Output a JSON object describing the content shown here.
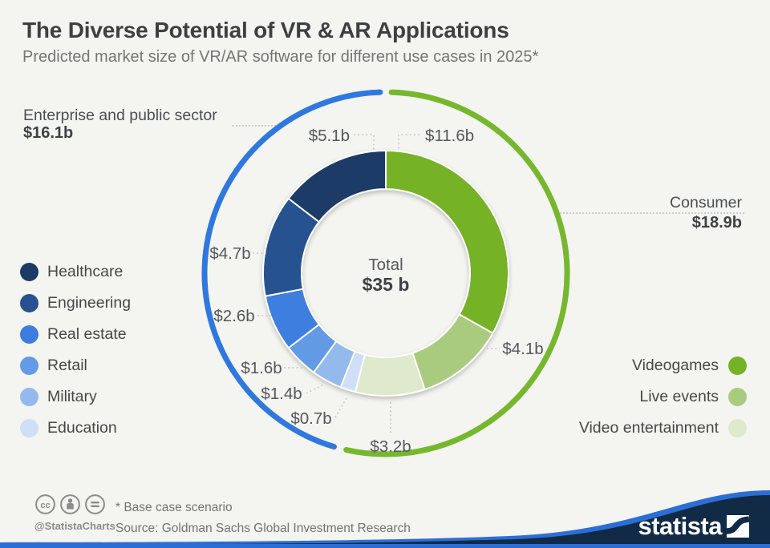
{
  "header": {
    "title": "The Diverse Potential of VR & AR Applications",
    "subtitle": "Predicted market size of VR/AR software for different use cases in 2025*"
  },
  "chart_data": {
    "type": "donut",
    "title": "The Diverse Potential of VR & AR Applications",
    "center_label": "Total",
    "center_value": "$35 b",
    "total": 35,
    "groups": [
      {
        "name": "Consumer",
        "value": 18.9,
        "value_label": "$18.9b",
        "color": "#76b82d"
      },
      {
        "name": "Enterprise and public sector",
        "value": 16.1,
        "value_label": "$16.1b",
        "color": "#2e78df"
      }
    ],
    "segments": [
      {
        "name": "Videogames",
        "value": 11.6,
        "label": "$11.6b",
        "color": "#74b226",
        "group": "Consumer"
      },
      {
        "name": "Live events",
        "value": 4.1,
        "label": "$4.1b",
        "color": "#a9cb7e",
        "group": "Consumer"
      },
      {
        "name": "Video entertainment",
        "value": 3.2,
        "label": "$3.2b",
        "color": "#dfe9cb",
        "group": "Consumer"
      },
      {
        "name": "Education",
        "value": 0.7,
        "label": "$0.7b",
        "color": "#cfdff7",
        "group": "Enterprise and public sector"
      },
      {
        "name": "Military",
        "value": 1.4,
        "label": "$1.4b",
        "color": "#93b9ed",
        "group": "Enterprise and public sector"
      },
      {
        "name": "Retail",
        "value": 1.6,
        "label": "$1.6b",
        "color": "#649ae6",
        "group": "Enterprise and public sector"
      },
      {
        "name": "Real estate",
        "value": 2.6,
        "label": "$2.6b",
        "color": "#3c7ede",
        "group": "Enterprise and public sector"
      },
      {
        "name": "Engineering",
        "value": 4.7,
        "label": "$4.7b",
        "color": "#27528f",
        "group": "Enterprise and public sector"
      },
      {
        "name": "Healthcare",
        "value": 5.1,
        "label": "$5.1b",
        "color": "#1b3a66",
        "group": "Enterprise and public sector"
      }
    ]
  },
  "callouts": {
    "enterprise": {
      "label": "Enterprise and public sector",
      "value": "$16.1b"
    },
    "consumer": {
      "label": "Consumer",
      "value": "$18.9b"
    }
  },
  "legend_left": [
    {
      "label": "Healthcare",
      "color": "#1b3a66"
    },
    {
      "label": "Engineering",
      "color": "#27528f"
    },
    {
      "label": "Real estate",
      "color": "#3c7ede"
    },
    {
      "label": "Retail",
      "color": "#649ae6"
    },
    {
      "label": "Military",
      "color": "#93b9ed"
    },
    {
      "label": "Education",
      "color": "#cfdff7"
    }
  ],
  "legend_right": [
    {
      "label": "Videogames",
      "color": "#74b226"
    },
    {
      "label": "Live events",
      "color": "#a9cb7e"
    },
    {
      "label": "Video entertainment",
      "color": "#dfe9cb"
    }
  ],
  "footer": {
    "note": "* Base case scenario",
    "source": "Source: Goldman Sachs Global Investment Research",
    "handle": "@StatistaCharts",
    "brand": "statista"
  },
  "colors": {
    "background": "#f4f4f1",
    "outer_ring_blue": "#2e78df",
    "outer_ring_green": "#76b82d",
    "wave_navy": "#112b47",
    "wave_blue": "#2b6ed6"
  }
}
